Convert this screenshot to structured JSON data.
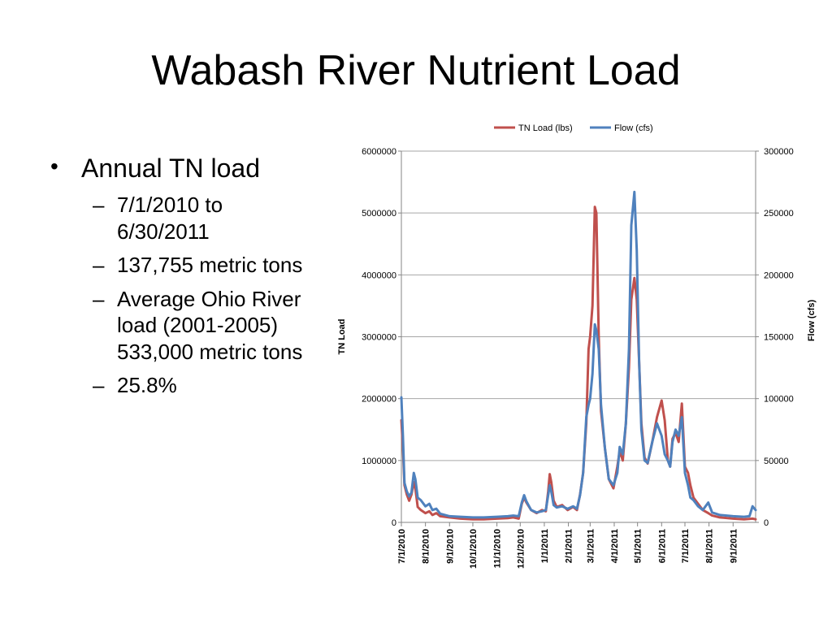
{
  "slide": {
    "title": "Wabash River Nutrient Load",
    "bullets": [
      {
        "text": "Annual TN load",
        "sub": [
          "7/1/2010 to 6/30/2011",
          "137,755 metric tons",
          "Average Ohio River load (2001-2005) 533,000 metric tons",
          "25.8%"
        ]
      }
    ]
  },
  "colors": {
    "tn": "#c0504d",
    "flow": "#4f81bd",
    "grid": "#a6a6a6",
    "axis": "#868686"
  },
  "chart_data": {
    "type": "line",
    "title": "",
    "legend_position": "top",
    "grid": true,
    "x_range": [
      "7/1/2010",
      "9/30/2011"
    ],
    "x_ticks": [
      "7/1/2010",
      "8/1/2010",
      "9/1/2010",
      "10/1/2010",
      "11/1/2010",
      "12/1/2010",
      "1/1/2011",
      "2/1/2011",
      "3/1/2011",
      "4/1/2011",
      "5/1/2011",
      "6/1/2011",
      "7/1/2011",
      "8/1/2011",
      "9/1/2011"
    ],
    "y_left": {
      "label": "TN Load",
      "ticks": [
        "0",
        "1000000",
        "2000000",
        "3000000",
        "4000000",
        "5000000",
        "6000000"
      ],
      "min": 0,
      "max": 6000000
    },
    "y_right": {
      "label": "Flow (cfs)",
      "ticks": [
        "0",
        "50000",
        "100000",
        "150000",
        "200000",
        "250000",
        "300000"
      ],
      "min": 0,
      "max": 300000
    },
    "series": [
      {
        "name": "TN Load (lbs)",
        "axis": "left",
        "points": [
          [
            "7/1/2010",
            1650000
          ],
          [
            "7/3/2010",
            1200000
          ],
          [
            "7/5/2010",
            600000
          ],
          [
            "7/8/2010",
            450000
          ],
          [
            "7/11/2010",
            350000
          ],
          [
            "7/14/2010",
            450000
          ],
          [
            "7/17/2010",
            650000
          ],
          [
            "7/19/2010",
            550000
          ],
          [
            "7/22/2010",
            250000
          ],
          [
            "7/26/2010",
            200000
          ],
          [
            "8/1/2010",
            150000
          ],
          [
            "8/6/2010",
            180000
          ],
          [
            "8/10/2010",
            120000
          ],
          [
            "8/15/2010",
            150000
          ],
          [
            "8/20/2010",
            100000
          ],
          [
            "9/1/2010",
            80000
          ],
          [
            "9/15/2010",
            60000
          ],
          [
            "10/1/2010",
            50000
          ],
          [
            "10/15/2010",
            50000
          ],
          [
            "11/1/2010",
            60000
          ],
          [
            "11/15/2010",
            70000
          ],
          [
            "11/22/2010",
            80000
          ],
          [
            "11/29/2010",
            60000
          ],
          [
            "12/3/2010",
            300000
          ],
          [
            "12/6/2010",
            400000
          ],
          [
            "12/9/2010",
            320000
          ],
          [
            "12/15/2010",
            200000
          ],
          [
            "12/22/2010",
            150000
          ],
          [
            "12/29/2010",
            200000
          ],
          [
            "1/3/2011",
            180000
          ],
          [
            "1/6/2011",
            500000
          ],
          [
            "1/8/2011",
            780000
          ],
          [
            "1/10/2011",
            650000
          ],
          [
            "1/13/2011",
            350000
          ],
          [
            "1/17/2011",
            250000
          ],
          [
            "1/24/2011",
            280000
          ],
          [
            "1/31/2011",
            200000
          ],
          [
            "2/7/2011",
            250000
          ],
          [
            "2/12/2011",
            200000
          ],
          [
            "2/16/2011",
            450000
          ],
          [
            "2/20/2011",
            800000
          ],
          [
            "2/24/2011",
            1600000
          ],
          [
            "2/27/2011",
            2800000
          ],
          [
            "3/1/2011",
            3000000
          ],
          [
            "3/4/2011",
            3500000
          ],
          [
            "3/7/2011",
            5100000
          ],
          [
            "3/9/2011",
            5000000
          ],
          [
            "3/12/2011",
            3000000
          ],
          [
            "3/15/2011",
            1800000
          ],
          [
            "3/20/2011",
            1200000
          ],
          [
            "3/25/2011",
            700000
          ],
          [
            "3/31/2011",
            550000
          ],
          [
            "4/5/2011",
            900000
          ],
          [
            "4/8/2011",
            1150000
          ],
          [
            "4/12/2011",
            1000000
          ],
          [
            "4/16/2011",
            1600000
          ],
          [
            "4/20/2011",
            2500000
          ],
          [
            "4/23/2011",
            3600000
          ],
          [
            "4/27/2011",
            3950000
          ],
          [
            "4/30/2011",
            3600000
          ],
          [
            "5/3/2011",
            2600000
          ],
          [
            "5/6/2011",
            1600000
          ],
          [
            "5/10/2011",
            1050000
          ],
          [
            "5/14/2011",
            950000
          ],
          [
            "5/20/2011",
            1300000
          ],
          [
            "5/26/2011",
            1700000
          ],
          [
            "6/1/2011",
            1970000
          ],
          [
            "6/5/2011",
            1650000
          ],
          [
            "6/9/2011",
            1000000
          ],
          [
            "6/12/2011",
            900000
          ],
          [
            "6/15/2011",
            1350000
          ],
          [
            "6/19/2011",
            1450000
          ],
          [
            "6/23/2011",
            1300000
          ],
          [
            "6/27/2011",
            1920000
          ],
          [
            "7/1/2011",
            900000
          ],
          [
            "7/5/2011",
            800000
          ],
          [
            "7/8/2011",
            600000
          ],
          [
            "7/12/2011",
            400000
          ],
          [
            "7/18/2011",
            300000
          ],
          [
            "7/24/2011",
            200000
          ],
          [
            "7/31/2011",
            150000
          ],
          [
            "8/5/2011",
            110000
          ],
          [
            "8/15/2011",
            80000
          ],
          [
            "9/1/2011",
            60000
          ],
          [
            "9/15/2011",
            50000
          ],
          [
            "9/26/2011",
            60000
          ],
          [
            "9/30/2011",
            50000
          ]
        ]
      },
      {
        "name": "Flow (cfs)",
        "axis": "right",
        "points": [
          [
            "7/1/2010",
            101000
          ],
          [
            "7/3/2010",
            70000
          ],
          [
            "7/5/2010",
            32000
          ],
          [
            "7/8/2010",
            25000
          ],
          [
            "7/11/2010",
            21000
          ],
          [
            "7/14/2010",
            24000
          ],
          [
            "7/17/2010",
            40000
          ],
          [
            "7/19/2010",
            35000
          ],
          [
            "7/22/2010",
            20000
          ],
          [
            "7/26/2010",
            18000
          ],
          [
            "8/1/2010",
            13000
          ],
          [
            "8/6/2010",
            15000
          ],
          [
            "8/10/2010",
            10000
          ],
          [
            "8/15/2010",
            11000
          ],
          [
            "8/20/2010",
            7000
          ],
          [
            "9/1/2010",
            5000
          ],
          [
            "9/15/2010",
            4500
          ],
          [
            "10/1/2010",
            4000
          ],
          [
            "10/15/2010",
            4000
          ],
          [
            "11/1/2010",
            4500
          ],
          [
            "11/15/2010",
            5000
          ],
          [
            "11/22/2010",
            5500
          ],
          [
            "11/29/2010",
            5000
          ],
          [
            "12/3/2010",
            16000
          ],
          [
            "12/6/2010",
            22000
          ],
          [
            "12/9/2010",
            17000
          ],
          [
            "12/15/2010",
            10000
          ],
          [
            "12/22/2010",
            8000
          ],
          [
            "12/29/2010",
            9000
          ],
          [
            "1/3/2011",
            10000
          ],
          [
            "1/6/2011",
            22000
          ],
          [
            "1/8/2011",
            30000
          ],
          [
            "1/10/2011",
            25000
          ],
          [
            "1/13/2011",
            14000
          ],
          [
            "1/17/2011",
            12000
          ],
          [
            "1/24/2011",
            13000
          ],
          [
            "1/31/2011",
            11000
          ],
          [
            "2/7/2011",
            13000
          ],
          [
            "2/12/2011",
            11000
          ],
          [
            "2/16/2011",
            22000
          ],
          [
            "2/20/2011",
            40000
          ],
          [
            "2/24/2011",
            85000
          ],
          [
            "2/27/2011",
            95000
          ],
          [
            "3/1/2011",
            100000
          ],
          [
            "3/4/2011",
            120000
          ],
          [
            "3/7/2011",
            160000
          ],
          [
            "3/9/2011",
            155000
          ],
          [
            "3/12/2011",
            140000
          ],
          [
            "3/15/2011",
            95000
          ],
          [
            "3/20/2011",
            60000
          ],
          [
            "3/25/2011",
            35000
          ],
          [
            "3/31/2011",
            30000
          ],
          [
            "4/5/2011",
            40000
          ],
          [
            "4/8/2011",
            61000
          ],
          [
            "4/12/2011",
            55000
          ],
          [
            "4/16/2011",
            80000
          ],
          [
            "4/20/2011",
            140000
          ],
          [
            "4/23/2011",
            240000
          ],
          [
            "4/27/2011",
            267000
          ],
          [
            "4/30/2011",
            220000
          ],
          [
            "5/3/2011",
            130000
          ],
          [
            "5/6/2011",
            75000
          ],
          [
            "5/10/2011",
            50000
          ],
          [
            "5/14/2011",
            48000
          ],
          [
            "5/20/2011",
            65000
          ],
          [
            "5/26/2011",
            80000
          ],
          [
            "6/1/2011",
            70000
          ],
          [
            "6/5/2011",
            55000
          ],
          [
            "6/9/2011",
            50000
          ],
          [
            "6/12/2011",
            45000
          ],
          [
            "6/15/2011",
            65000
          ],
          [
            "6/19/2011",
            75000
          ],
          [
            "6/23/2011",
            70000
          ],
          [
            "6/27/2011",
            85000
          ],
          [
            "7/1/2011",
            40000
          ],
          [
            "7/5/2011",
            30000
          ],
          [
            "7/8/2011",
            20000
          ],
          [
            "7/12/2011",
            18000
          ],
          [
            "7/18/2011",
            13000
          ],
          [
            "7/24/2011",
            10000
          ],
          [
            "7/31/2011",
            16000
          ],
          [
            "8/5/2011",
            8000
          ],
          [
            "8/15/2011",
            6000
          ],
          [
            "9/1/2011",
            5000
          ],
          [
            "9/15/2011",
            4500
          ],
          [
            "9/22/2011",
            5000
          ],
          [
            "9/26/2011",
            13000
          ],
          [
            "9/30/2011",
            10000
          ]
        ]
      }
    ]
  }
}
